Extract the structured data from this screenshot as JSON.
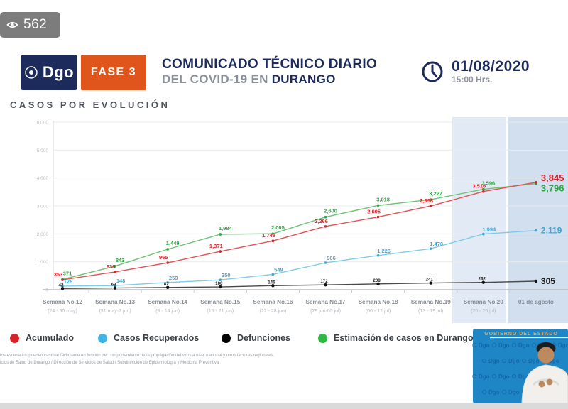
{
  "viewer_badge": {
    "icon": "eye-icon",
    "count": "562"
  },
  "header": {
    "logo_text": "Dgo",
    "phase_badge": "FASE 3",
    "title_line1": "COMUNICADO TÉCNICO DIARIO",
    "title_line2_prefix": "DEL COVID-19 EN ",
    "title_line2_highlight": "DURANGO",
    "date": "01/08/2020",
    "time": "15:00 Hrs."
  },
  "section_title": "CASOS POR EVOLUCIÓN",
  "chart_data": {
    "type": "line",
    "title": "CASOS POR EVOLUCIÓN",
    "ylim": [
      0,
      6000
    ],
    "ytick_step": 1000,
    "grid": true,
    "legend_position": "bottom",
    "highlight_last_two_columns": true,
    "categories": [
      {
        "label": "Semana No.12",
        "range": "(24 - 30 may)"
      },
      {
        "label": "Semana No.13",
        "range": "(31 may-7 jun)"
      },
      {
        "label": "Semana No.14",
        "range": "(8 - 14 jun)"
      },
      {
        "label": "Semana No.15",
        "range": "(15 - 21 jun)"
      },
      {
        "label": "Semana No.16",
        "range": "(22 - 28 jun)"
      },
      {
        "label": "Semana No.17",
        "range": "(29 jun-05 jul)"
      },
      {
        "label": "Semana No.18",
        "range": "(06 - 12 jul)"
      },
      {
        "label": "Semana No.19",
        "range": "(13 - 19 jul)"
      },
      {
        "label": "Semana No.20",
        "range": "(20 - 26 jul)"
      },
      {
        "label": "01 de agosto",
        "range": ""
      }
    ],
    "series": [
      {
        "name": "Acumulado",
        "color": "#e05252",
        "label_color": "#d6242c",
        "values": [
          353,
          638,
          965,
          1371,
          1749,
          2266,
          2605,
          2998,
          3516,
          3845
        ]
      },
      {
        "name": "Casos Recuperados",
        "color": "#7fcbe8",
        "label_color": "#3aa8dc",
        "values": [
          128,
          148,
          259,
          350,
          549,
          966,
          1226,
          1470,
          1994,
          2119
        ]
      },
      {
        "name": "Defunciones",
        "color": "#4a4a4a",
        "label_color": "#1a1a1a",
        "values": [
          42,
          63,
          82,
          100,
          146,
          172,
          208,
          241,
          262,
          305
        ]
      },
      {
        "name": "Estimación de casos en Durango",
        "color": "#6fc276",
        "label_color": "#27a93a",
        "values": [
          371,
          843,
          1449,
          1984,
          2005,
          2600,
          3018,
          3227,
          3596,
          3796
        ]
      }
    ]
  },
  "legend": {
    "items": [
      {
        "label": "Acumulado",
        "color": "#d6232a"
      },
      {
        "label": "Casos Recuperados",
        "color": "#3fb4e6"
      },
      {
        "label": "Defunciones",
        "color": "#000000"
      },
      {
        "label": "Estimación de casos en Durango",
        "color": "#2fb943"
      }
    ]
  },
  "footnotes": [
    "tos escenarios pueden cambiar fácilmente en función del comportamiento de la propagación del virus a nivel nacional y otros factores regionales.",
    "icios de Salud de Durango / Dirección de Servicios de Salud / Subdirección de Epidemiología y Medicina Preventiva"
  ],
  "video_overlay": {
    "banner_text": "GOBIERNO DEL ESTADO",
    "pattern_text": "Dgo"
  }
}
